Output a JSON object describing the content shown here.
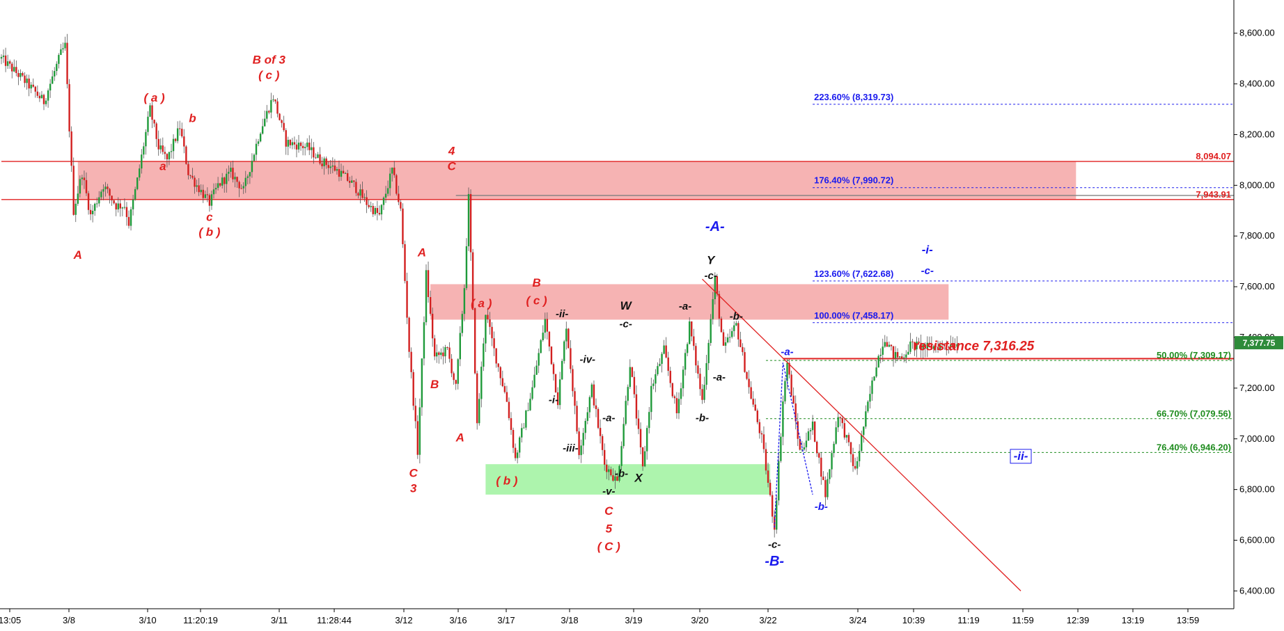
{
  "chart_data": {
    "type": "candlestick",
    "title": "",
    "xlabel": "",
    "ylabel": "",
    "ylim": [
      6300,
      8700
    ],
    "price_scale": {
      "ticks": [
        6400,
        6600,
        6800,
        7000,
        7200,
        7400,
        7600,
        7800,
        8000,
        8200,
        8400,
        8600
      ],
      "tick_labels": [
        "6,400.00",
        "6,600.00",
        "6,800.00",
        "7,000.00",
        "7,200.00",
        "7,400.00",
        "7,600.00",
        "7,800.00",
        "8,000.00",
        "8,200.00",
        "8,400.00",
        "8,600.00"
      ],
      "last_price": 7377.75,
      "last_price_label": "7,377.75",
      "last_price_color": "#2e8b3a"
    },
    "time_axis": {
      "labels": [
        "13:05",
        "3/8",
        "3/10",
        "11:20:19",
        "3/11",
        "11:28:44",
        "3/12",
        "3/16",
        "3/17",
        "3/18",
        "3/19",
        "3/20",
        "3/22",
        "3/24",
        "10:39",
        "11:19",
        "11:59",
        "12:39",
        "13:19",
        "13:59"
      ],
      "last_bar_index": 225,
      "index_span": 300
    },
    "price_path": [
      [
        0,
        8500
      ],
      [
        5,
        8420
      ],
      [
        10,
        8330
      ],
      [
        14,
        8520
      ],
      [
        15,
        8550
      ],
      [
        17,
        7900
      ],
      [
        19,
        8050
      ],
      [
        21,
        7880
      ],
      [
        24,
        8000
      ],
      [
        27,
        7920
      ],
      [
        29,
        7920
      ],
      [
        30,
        7850
      ],
      [
        32,
        8020
      ],
      [
        35,
        8300
      ],
      [
        37,
        8150
      ],
      [
        39,
        8100
      ],
      [
        42,
        8230
      ],
      [
        44,
        8050
      ],
      [
        46,
        8000
      ],
      [
        49,
        7930
      ],
      [
        51,
        8000
      ],
      [
        54,
        8050
      ],
      [
        57,
        7980
      ],
      [
        61,
        8220
      ],
      [
        64,
        8350
      ],
      [
        67,
        8170
      ],
      [
        72,
        8150
      ],
      [
        75,
        8100
      ],
      [
        79,
        8060
      ],
      [
        83,
        8000
      ],
      [
        86,
        7930
      ],
      [
        89,
        7880
      ],
      [
        92,
        8060
      ],
      [
        94,
        7900
      ],
      [
        96,
        7350
      ],
      [
        98,
        6950
      ],
      [
        100,
        7650
      ],
      [
        102,
        7320
      ],
      [
        105,
        7350
      ],
      [
        107,
        7200
      ],
      [
        109,
        7600
      ],
      [
        110,
        7950
      ],
      [
        112,
        7050
      ],
      [
        114,
        7500
      ],
      [
        116,
        7350
      ],
      [
        119,
        7150
      ],
      [
        121,
        6920
      ],
      [
        125,
        7200
      ],
      [
        128,
        7470
      ],
      [
        131,
        7150
      ],
      [
        133,
        7450
      ],
      [
        136,
        6950
      ],
      [
        139,
        7200
      ],
      [
        142,
        6900
      ],
      [
        145,
        6830
      ],
      [
        148,
        7300
      ],
      [
        151,
        6880
      ],
      [
        153,
        7200
      ],
      [
        156,
        7350
      ],
      [
        159,
        7100
      ],
      [
        162,
        7450
      ],
      [
        165,
        7150
      ],
      [
        168,
        7630
      ],
      [
        170,
        7350
      ],
      [
        173,
        7450
      ],
      [
        176,
        7200
      ],
      [
        179,
        7000
      ],
      [
        182,
        6650
      ],
      [
        184,
        7150
      ],
      [
        185,
        7300
      ],
      [
        188,
        6950
      ],
      [
        191,
        7050
      ],
      [
        194,
        6780
      ],
      [
        197,
        7100
      ],
      [
        199,
        7000
      ],
      [
        201,
        6870
      ],
      [
        203,
        7050
      ],
      [
        206,
        7300
      ],
      [
        208,
        7400
      ],
      [
        210,
        7330
      ],
      [
        212,
        7320
      ],
      [
        214,
        7370
      ],
      [
        218,
        7360
      ],
      [
        222,
        7370
      ],
      [
        225,
        7377
      ]
    ],
    "zones": [
      {
        "name": "resistance-zone-upper",
        "color": "#f4a6a6",
        "price_top": 8094.07,
        "price_bottom": 7943.91,
        "i0": 18,
        "i1": 253
      },
      {
        "name": "resistance-zone-middle",
        "color": "#f4a6a6",
        "price_top": 7610,
        "price_bottom": 7470,
        "i0": 101,
        "i1": 223
      },
      {
        "name": "support-zone",
        "color": "#9ff29f",
        "price_top": 6900,
        "price_bottom": 6780,
        "i0": 114,
        "i1": 181
      }
    ],
    "horizontal_lines": [
      {
        "label": "8,094.07",
        "price": 8094.07,
        "color": "#e02020",
        "style": "solid",
        "i0": 0
      },
      {
        "label": "7,943.91",
        "price": 7943.91,
        "color": "#e02020",
        "style": "solid",
        "i0": 0
      },
      {
        "label": "",
        "price": 7960,
        "color": "#808080",
        "style": "solid",
        "i0": 107
      },
      {
        "label": "223.60% (8,319.73)",
        "price": 8319.73,
        "color": "#1a1aee",
        "style": "dotted",
        "i0": 191
      },
      {
        "label": "176.40% (7,990.72)",
        "price": 7990.72,
        "color": "#1a1aee",
        "style": "dotted",
        "i0": 191
      },
      {
        "label": "123.60% (7,622.68)",
        "price": 7622.68,
        "color": "#1a1aee",
        "style": "dotted",
        "i0": 191
      },
      {
        "label": "100.00% (7,458.17)",
        "price": 7458.17,
        "color": "#1a1aee",
        "style": "dotted",
        "i0": 191
      },
      {
        "label": "50.00% (7,309.17)",
        "price": 7309.17,
        "color": "#1e8c1e",
        "style": "dotted",
        "i0": 180
      },
      {
        "label": "66.70% (7,079.56)",
        "price": 7079.56,
        "color": "#1e8c1e",
        "style": "dotted",
        "i0": 180
      },
      {
        "label": "76.40% (6,946.20)",
        "price": 6946.2,
        "color": "#1e8c1e",
        "style": "dotted",
        "i0": 180
      }
    ],
    "resistance_line": {
      "label": "resistance 7,316.25",
      "price": 7316.25,
      "color": "#e02020",
      "i0": 184
    },
    "trendline": {
      "color": "#e02020",
      "from": [
        165,
        7630
      ],
      "to": [
        240,
        6400
      ]
    },
    "wave_path_blue": {
      "color": "#1a1aee",
      "points": [
        [
          182,
          6650
        ],
        [
          184,
          7300
        ],
        [
          191,
          6780
        ]
      ]
    },
    "annotations": [
      {
        "text": "B of 3",
        "i": 63,
        "price": 8480,
        "color": "#e02020",
        "size": 17
      },
      {
        "text": "( c )",
        "i": 63,
        "price": 8420,
        "color": "#e02020",
        "size": 17
      },
      {
        "text": "( a )",
        "i": 36,
        "price": 8330,
        "color": "#e02020",
        "size": 17
      },
      {
        "text": "b",
        "i": 45,
        "price": 8250,
        "color": "#e02020",
        "size": 17
      },
      {
        "text": "a",
        "i": 38,
        "price": 8060,
        "color": "#e02020",
        "size": 17
      },
      {
        "text": "c",
        "i": 49,
        "price": 7860,
        "color": "#e02020",
        "size": 17
      },
      {
        "text": "( b )",
        "i": 49,
        "price": 7800,
        "color": "#e02020",
        "size": 17
      },
      {
        "text": "A",
        "i": 18,
        "price": 7710,
        "color": "#e02020",
        "size": 17
      },
      {
        "text": "4",
        "i": 106,
        "price": 8120,
        "color": "#e02020",
        "size": 17
      },
      {
        "text": "C",
        "i": 106,
        "price": 8060,
        "color": "#e02020",
        "size": 17
      },
      {
        "text": "A",
        "i": 99,
        "price": 7720,
        "color": "#e02020",
        "size": 17
      },
      {
        "text": "B",
        "i": 102,
        "price": 7200,
        "color": "#e02020",
        "size": 17
      },
      {
        "text": "C",
        "i": 97,
        "price": 6850,
        "color": "#e02020",
        "size": 17
      },
      {
        "text": "3",
        "i": 97,
        "price": 6790,
        "color": "#e02020",
        "size": 17
      },
      {
        "text": "A",
        "i": 108,
        "price": 6990,
        "color": "#e02020",
        "size": 17
      },
      {
        "text": "( a )",
        "i": 113,
        "price": 7520,
        "color": "#e02020",
        "size": 17
      },
      {
        "text": "B",
        "i": 126,
        "price": 7600,
        "color": "#e02020",
        "size": 17
      },
      {
        "text": "( c )",
        "i": 126,
        "price": 7530,
        "color": "#e02020",
        "size": 17
      },
      {
        "text": "( b )",
        "i": 119,
        "price": 6820,
        "color": "#e02020",
        "size": 17
      },
      {
        "text": "C",
        "i": 143,
        "price": 6700,
        "color": "#e02020",
        "size": 17
      },
      {
        "text": "5",
        "i": 143,
        "price": 6630,
        "color": "#e02020",
        "size": 17
      },
      {
        "text": "( C )",
        "i": 143,
        "price": 6560,
        "color": "#e02020",
        "size": 17
      },
      {
        "text": "-ii-",
        "i": 132,
        "price": 7480,
        "color": "#111111",
        "size": 15
      },
      {
        "text": "-iv-",
        "i": 138,
        "price": 7300,
        "color": "#111111",
        "size": 15
      },
      {
        "text": "-i-",
        "i": 130,
        "price": 7140,
        "color": "#111111",
        "size": 15
      },
      {
        "text": "-iii-",
        "i": 134,
        "price": 6950,
        "color": "#111111",
        "size": 15
      },
      {
        "text": "-a-",
        "i": 143,
        "price": 7070,
        "color": "#111111",
        "size": 15
      },
      {
        "text": "-b-",
        "i": 146,
        "price": 6850,
        "color": "#111111",
        "size": 15
      },
      {
        "text": "-v-",
        "i": 143,
        "price": 6780,
        "color": "#111111",
        "size": 15
      },
      {
        "text": "W",
        "i": 147,
        "price": 7510,
        "color": "#111111",
        "size": 17
      },
      {
        "text": "-c-",
        "i": 147,
        "price": 7440,
        "color": "#111111",
        "size": 15
      },
      {
        "text": "X",
        "i": 150,
        "price": 6830,
        "color": "#111111",
        "size": 17
      },
      {
        "text": "-a-",
        "i": 161,
        "price": 7510,
        "color": "#111111",
        "size": 15
      },
      {
        "text": "Y",
        "i": 167,
        "price": 7690,
        "color": "#111111",
        "size": 17
      },
      {
        "text": "-c-",
        "i": 167,
        "price": 7630,
        "color": "#111111",
        "size": 15
      },
      {
        "text": "-b-",
        "i": 173,
        "price": 7470,
        "color": "#111111",
        "size": 15
      },
      {
        "text": "-a-",
        "i": 169,
        "price": 7230,
        "color": "#111111",
        "size": 15
      },
      {
        "text": "-b-",
        "i": 165,
        "price": 7070,
        "color": "#111111",
        "size": 15
      },
      {
        "text": "-c-",
        "i": 182,
        "price": 6570,
        "color": "#111111",
        "size": 15
      },
      {
        "text": "-A-",
        "i": 168,
        "price": 7820,
        "color": "#1a1aee",
        "size": 20
      },
      {
        "text": "-B-",
        "i": 182,
        "price": 6500,
        "color": "#1a1aee",
        "size": 20
      },
      {
        "text": "-a-",
        "i": 185,
        "price": 7330,
        "color": "#1a1aee",
        "size": 15
      },
      {
        "text": "-b-",
        "i": 193,
        "price": 6720,
        "color": "#1a1aee",
        "size": 15
      },
      {
        "text": "-i-",
        "i": 218,
        "price": 7730,
        "color": "#1a1aee",
        "size": 17
      },
      {
        "text": "-c-",
        "i": 218,
        "price": 7650,
        "color": "#1a1aee",
        "size": 15
      }
    ],
    "boxed_annotation": {
      "text": "-ii-",
      "i": 240,
      "price": 6920,
      "color": "#1a1aee"
    }
  }
}
